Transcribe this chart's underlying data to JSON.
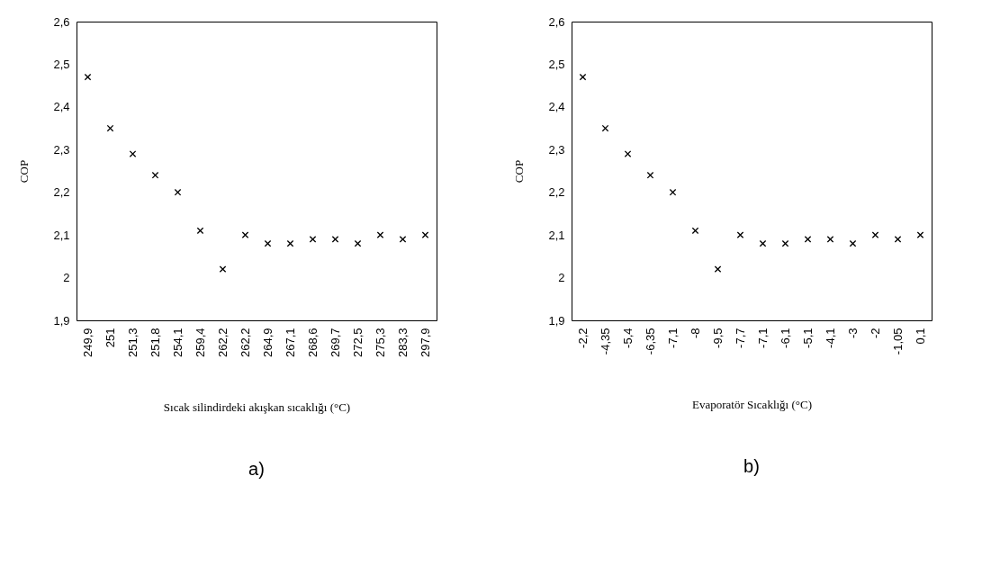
{
  "chart_data": [
    {
      "type": "scatter",
      "xlabel": "Sıcak silindirdeki akışkan sıcaklığı (°C)",
      "ylabel": "COP",
      "marker": "cross",
      "grid": false,
      "legend": false,
      "categories": [
        "249,9",
        "251",
        "251,3",
        "251,8",
        "254,1",
        "259,4",
        "262,2",
        "262,2",
        "264,9",
        "267,1",
        "268,6",
        "269,7",
        "272,5",
        "275,3",
        "283,3",
        "297,9"
      ],
      "series": [
        {
          "color": "#000000",
          "values": [
            2.47,
            2.35,
            2.29,
            2.24,
            2.2,
            2.11,
            2.02,
            2.1,
            2.08,
            2.08,
            2.09,
            2.09,
            2.08,
            2.1,
            2.09,
            2.1
          ]
        }
      ],
      "ylim": [
        1.9,
        2.6
      ],
      "yticks": [
        {
          "value": 1.9,
          "label": "1,9"
        },
        {
          "value": 2,
          "label": "2"
        },
        {
          "value": 2.1,
          "label": "2,1"
        },
        {
          "value": 2.2,
          "label": "2,2"
        },
        {
          "value": 2.3,
          "label": "2,3"
        },
        {
          "value": 2.4,
          "label": "2,4"
        },
        {
          "value": 2.5,
          "label": "2,5"
        },
        {
          "value": 2.6,
          "label": "2,6"
        }
      ],
      "annotations": [
        "a)"
      ]
    },
    {
      "type": "scatter",
      "xlabel": "Evaporatör Sıcaklığı (°C)",
      "ylabel": "COP",
      "marker": "cross",
      "grid": false,
      "legend": false,
      "categories": [
        "-2,2",
        "-4,35",
        "-5,4",
        "-6,35",
        "-7,1",
        "-8",
        "-9,5",
        "-7,7",
        "-7,1",
        "-6,1",
        "-5,1",
        "-4,1",
        "-3",
        "-2",
        "-1,05",
        "0,1"
      ],
      "series": [
        {
          "color": "#000000",
          "values": [
            2.47,
            2.35,
            2.29,
            2.24,
            2.2,
            2.11,
            2.02,
            2.1,
            2.08,
            2.08,
            2.09,
            2.09,
            2.08,
            2.1,
            2.09,
            2.1
          ]
        }
      ],
      "ylim": [
        1.9,
        2.6
      ],
      "yticks": [
        {
          "value": 1.9,
          "label": "1,9"
        },
        {
          "value": 2,
          "label": "2"
        },
        {
          "value": 2.1,
          "label": "2,1"
        },
        {
          "value": 2.2,
          "label": "2,2"
        },
        {
          "value": 2.3,
          "label": "2,3"
        },
        {
          "value": 2.4,
          "label": "2,4"
        },
        {
          "value": 2.5,
          "label": "2,5"
        },
        {
          "value": 2.6,
          "label": "2,6"
        }
      ],
      "annotations": [
        "b)"
      ]
    }
  ]
}
